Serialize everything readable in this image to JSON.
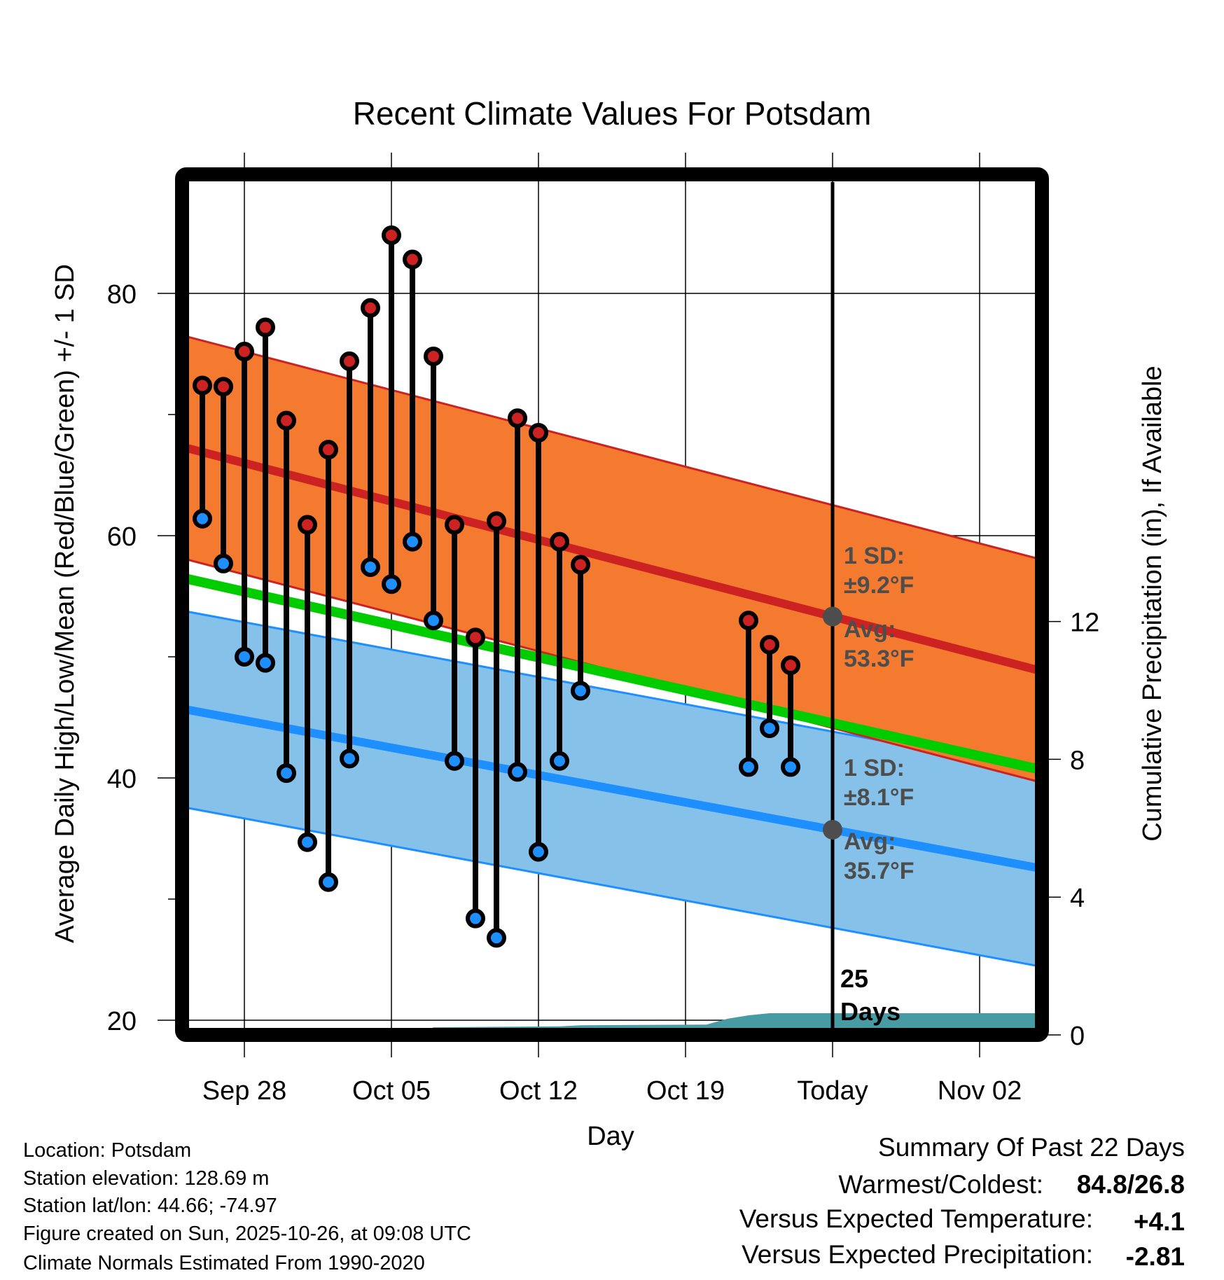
{
  "chart_data": {
    "type": "line",
    "title": "Recent Climate Values For Potsdam",
    "xlabel": "Day",
    "ylabel": "Average Daily High/Low/Mean (Red/Blue/Green) +/- 1 SD",
    "y2label": "Cumulative Precipitation (in), If Available",
    "ylim": [
      19.4,
      89.2
    ],
    "y2lim": [
      0,
      14
    ],
    "grid": true,
    "today": "2025-10-26",
    "x_ticks": [
      {
        "date": "2025-09-28",
        "label": "Sep 28"
      },
      {
        "date": "2025-10-05",
        "label": "Oct 05"
      },
      {
        "date": "2025-10-12",
        "label": "Oct 12"
      },
      {
        "date": "2025-10-19",
        "label": "Oct 19"
      },
      {
        "date": "2025-10-26",
        "label": "Today"
      },
      {
        "date": "2025-11-02",
        "label": "Nov 02"
      }
    ],
    "y_ticks": [
      "80",
      "60",
      "40",
      "20"
    ],
    "y_minor_ticks": [
      70,
      50,
      30
    ],
    "y2_ticks": [
      "12",
      "8",
      "4",
      "0"
    ],
    "observations": [
      {
        "date": "2025-09-26",
        "high": 72.4,
        "low": 61.4
      },
      {
        "date": "2025-09-27",
        "high": 72.3,
        "low": 57.7
      },
      {
        "date": "2025-09-28",
        "high": 75.2,
        "low": 50.0
      },
      {
        "date": "2025-09-29",
        "high": 77.2,
        "low": 49.5
      },
      {
        "date": "2025-09-30",
        "high": 69.5,
        "low": 40.4
      },
      {
        "date": "2025-10-01",
        "high": 60.9,
        "low": 34.7
      },
      {
        "date": "2025-10-02",
        "high": 67.1,
        "low": 31.4
      },
      {
        "date": "2025-10-03",
        "high": 74.4,
        "low": 41.6
      },
      {
        "date": "2025-10-04",
        "high": 78.8,
        "low": 57.4
      },
      {
        "date": "2025-10-05",
        "high": 84.8,
        "low": 56.0
      },
      {
        "date": "2025-10-06",
        "high": 82.8,
        "low": 59.5
      },
      {
        "date": "2025-10-07",
        "high": 74.8,
        "low": 53.0
      },
      {
        "date": "2025-10-08",
        "high": 60.9,
        "low": 41.4
      },
      {
        "date": "2025-10-09",
        "high": 51.6,
        "low": 28.4
      },
      {
        "date": "2025-10-10",
        "high": 61.2,
        "low": 26.8
      },
      {
        "date": "2025-10-11",
        "high": 69.7,
        "low": 40.5
      },
      {
        "date": "2025-10-12",
        "high": 68.5,
        "low": 33.9
      },
      {
        "date": "2025-10-13",
        "high": 59.5,
        "low": 41.4
      },
      {
        "date": "2025-10-14",
        "high": 57.6,
        "low": 47.2
      },
      {
        "date": "2025-10-22",
        "high": 53.0,
        "low": 40.9
      },
      {
        "date": "2025-10-23",
        "high": 51.0,
        "low": 44.1
      },
      {
        "date": "2025-10-24",
        "high": 49.3,
        "low": 40.9
      }
    ],
    "normals": {
      "high": {
        "start_date": "2025-09-26",
        "start": 66.9,
        "end_date": "2025-11-05",
        "end": 48.8,
        "sd": 9.2
      },
      "low": {
        "start_date": "2025-09-26",
        "start": 45.4,
        "end_date": "2025-11-05",
        "end": 32.5,
        "sd": 8.1
      }
    },
    "precip_cumulative": [
      {
        "date": "2025-10-06",
        "value": 0.0
      },
      {
        "date": "2025-10-07",
        "value": 0.22
      },
      {
        "date": "2025-10-13",
        "value": 0.25
      },
      {
        "date": "2025-10-14",
        "value": 0.28
      },
      {
        "date": "2025-10-20",
        "value": 0.3
      },
      {
        "date": "2025-10-21",
        "value": 0.47
      },
      {
        "date": "2025-10-22",
        "value": 0.57
      },
      {
        "date": "2025-10-23",
        "value": 0.63
      },
      {
        "date": "2025-11-06",
        "value": 0.63
      }
    ],
    "annotations": {
      "high_sd_label": "1 SD:",
      "high_sd_value": "±9.2°F",
      "high_avg_label": "Avg:",
      "high_avg_value": "53.3°F",
      "low_sd_label": "1 SD:",
      "low_sd_value": "±8.1°F",
      "low_avg_label": "Avg:",
      "low_avg_value": "35.7°F",
      "days_count": "25",
      "days_label": "Days"
    },
    "colors": {
      "high": "#cc2222",
      "high_band": "#f47a30",
      "low": "#1e8fff",
      "low_band": "#85c1e9",
      "mean": "#00cc00",
      "precip": "#479ba3",
      "annotation": "#4d4d4d"
    }
  },
  "footer": {
    "location": "Location: Potsdam",
    "elevation": "Station elevation: 128.69 m",
    "latlon": "Station lat/lon: 44.66; -74.97",
    "created": "Figure created on Sun, 2025-10-26, at 09:08 UTC",
    "normals": "Climate Normals Estimated From 1990-2020"
  },
  "summary": {
    "title": "Summary Of Past 22 Days",
    "warmest_label": "Warmest/Coldest:",
    "warmest_value": "84.8/26.8",
    "temp_label": "Versus Expected Temperature:",
    "temp_value": "+4.1",
    "temp_color": "#cc2222",
    "precip_label": "Versus Expected Precipitation:",
    "precip_value": "-2.81",
    "precip_color": "#a0522d"
  }
}
